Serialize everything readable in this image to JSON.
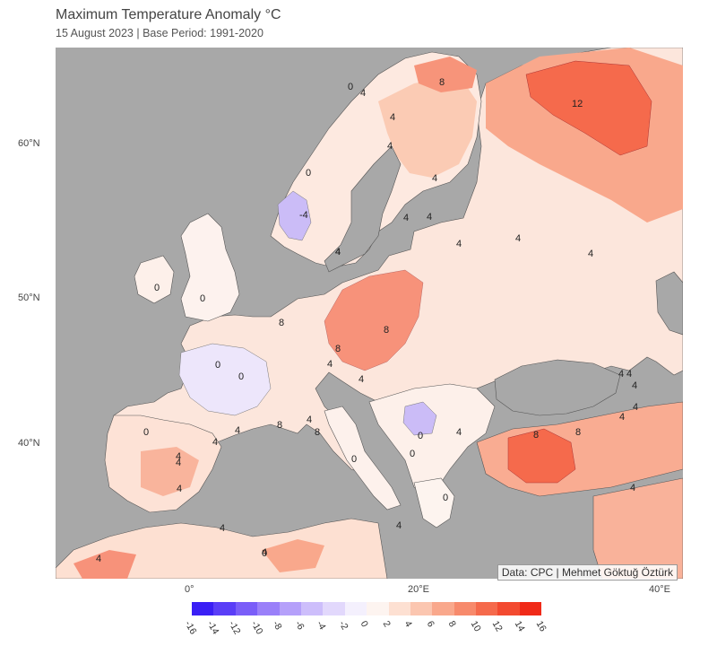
{
  "header": {
    "title": "Maximum Temperature Anomaly °C",
    "subtitle": "15 August 2023 | Base Period: 1991-2020"
  },
  "axes": {
    "lat_labels": [
      "60°N",
      "50°N",
      "40°N"
    ],
    "lon_labels": [
      "0°",
      "20°E",
      "40°E"
    ]
  },
  "credit": "Data: CPC | Mehmet Göktuğ Öztürk",
  "colorbar": {
    "ticks": [
      "-16",
      "-14",
      "-12",
      "-10",
      "-8",
      "-6",
      "-4",
      "-2",
      "0",
      "2",
      "4",
      "6",
      "8",
      "10",
      "12",
      "14",
      "16"
    ],
    "colors": [
      "#3a1ff5",
      "#5a3ef7",
      "#7a5ef8",
      "#9a80f9",
      "#b5a0fa",
      "#cdbefb",
      "#e2d8fc",
      "#f4f0fd",
      "#fdf4f0",
      "#fde0d2",
      "#fbc6b0",
      "#f9a88c",
      "#f78a6c",
      "#f56a4c",
      "#f34a30",
      "#f02a18"
    ],
    "units": "°C"
  },
  "contour_labels": [
    {
      "text": "0"
    },
    {
      "text": "4"
    },
    {
      "text": "8"
    },
    {
      "text": "4"
    },
    {
      "text": "4"
    },
    {
      "text": "4"
    },
    {
      "text": "12"
    },
    {
      "text": "0"
    },
    {
      "text": "-4"
    },
    {
      "text": "4"
    },
    {
      "text": "4"
    },
    {
      "text": "4"
    },
    {
      "text": "4"
    },
    {
      "text": "4"
    },
    {
      "text": "4"
    },
    {
      "text": "4"
    },
    {
      "text": "0"
    },
    {
      "text": "0"
    },
    {
      "text": "8"
    },
    {
      "text": "8"
    },
    {
      "text": "8"
    },
    {
      "text": "4"
    },
    {
      "text": "0"
    },
    {
      "text": "0"
    },
    {
      "text": "4"
    },
    {
      "text": "8"
    },
    {
      "text": "4"
    },
    {
      "text": "8"
    },
    {
      "text": "4"
    },
    {
      "text": "0"
    },
    {
      "text": "4"
    },
    {
      "text": "4"
    },
    {
      "text": "0"
    },
    {
      "text": "4"
    },
    {
      "text": "4"
    },
    {
      "text": "0"
    },
    {
      "text": "0"
    },
    {
      "text": "0"
    },
    {
      "text": "4"
    },
    {
      "text": "8"
    },
    {
      "text": "8"
    },
    {
      "text": "4"
    },
    {
      "text": "4"
    },
    {
      "text": "4"
    },
    {
      "text": "4"
    },
    {
      "text": "4"
    },
    {
      "text": "4"
    },
    {
      "text": "0"
    },
    {
      "text": "4"
    },
    {
      "text": "4"
    },
    {
      "text": "4"
    },
    {
      "text": "4"
    }
  ]
}
